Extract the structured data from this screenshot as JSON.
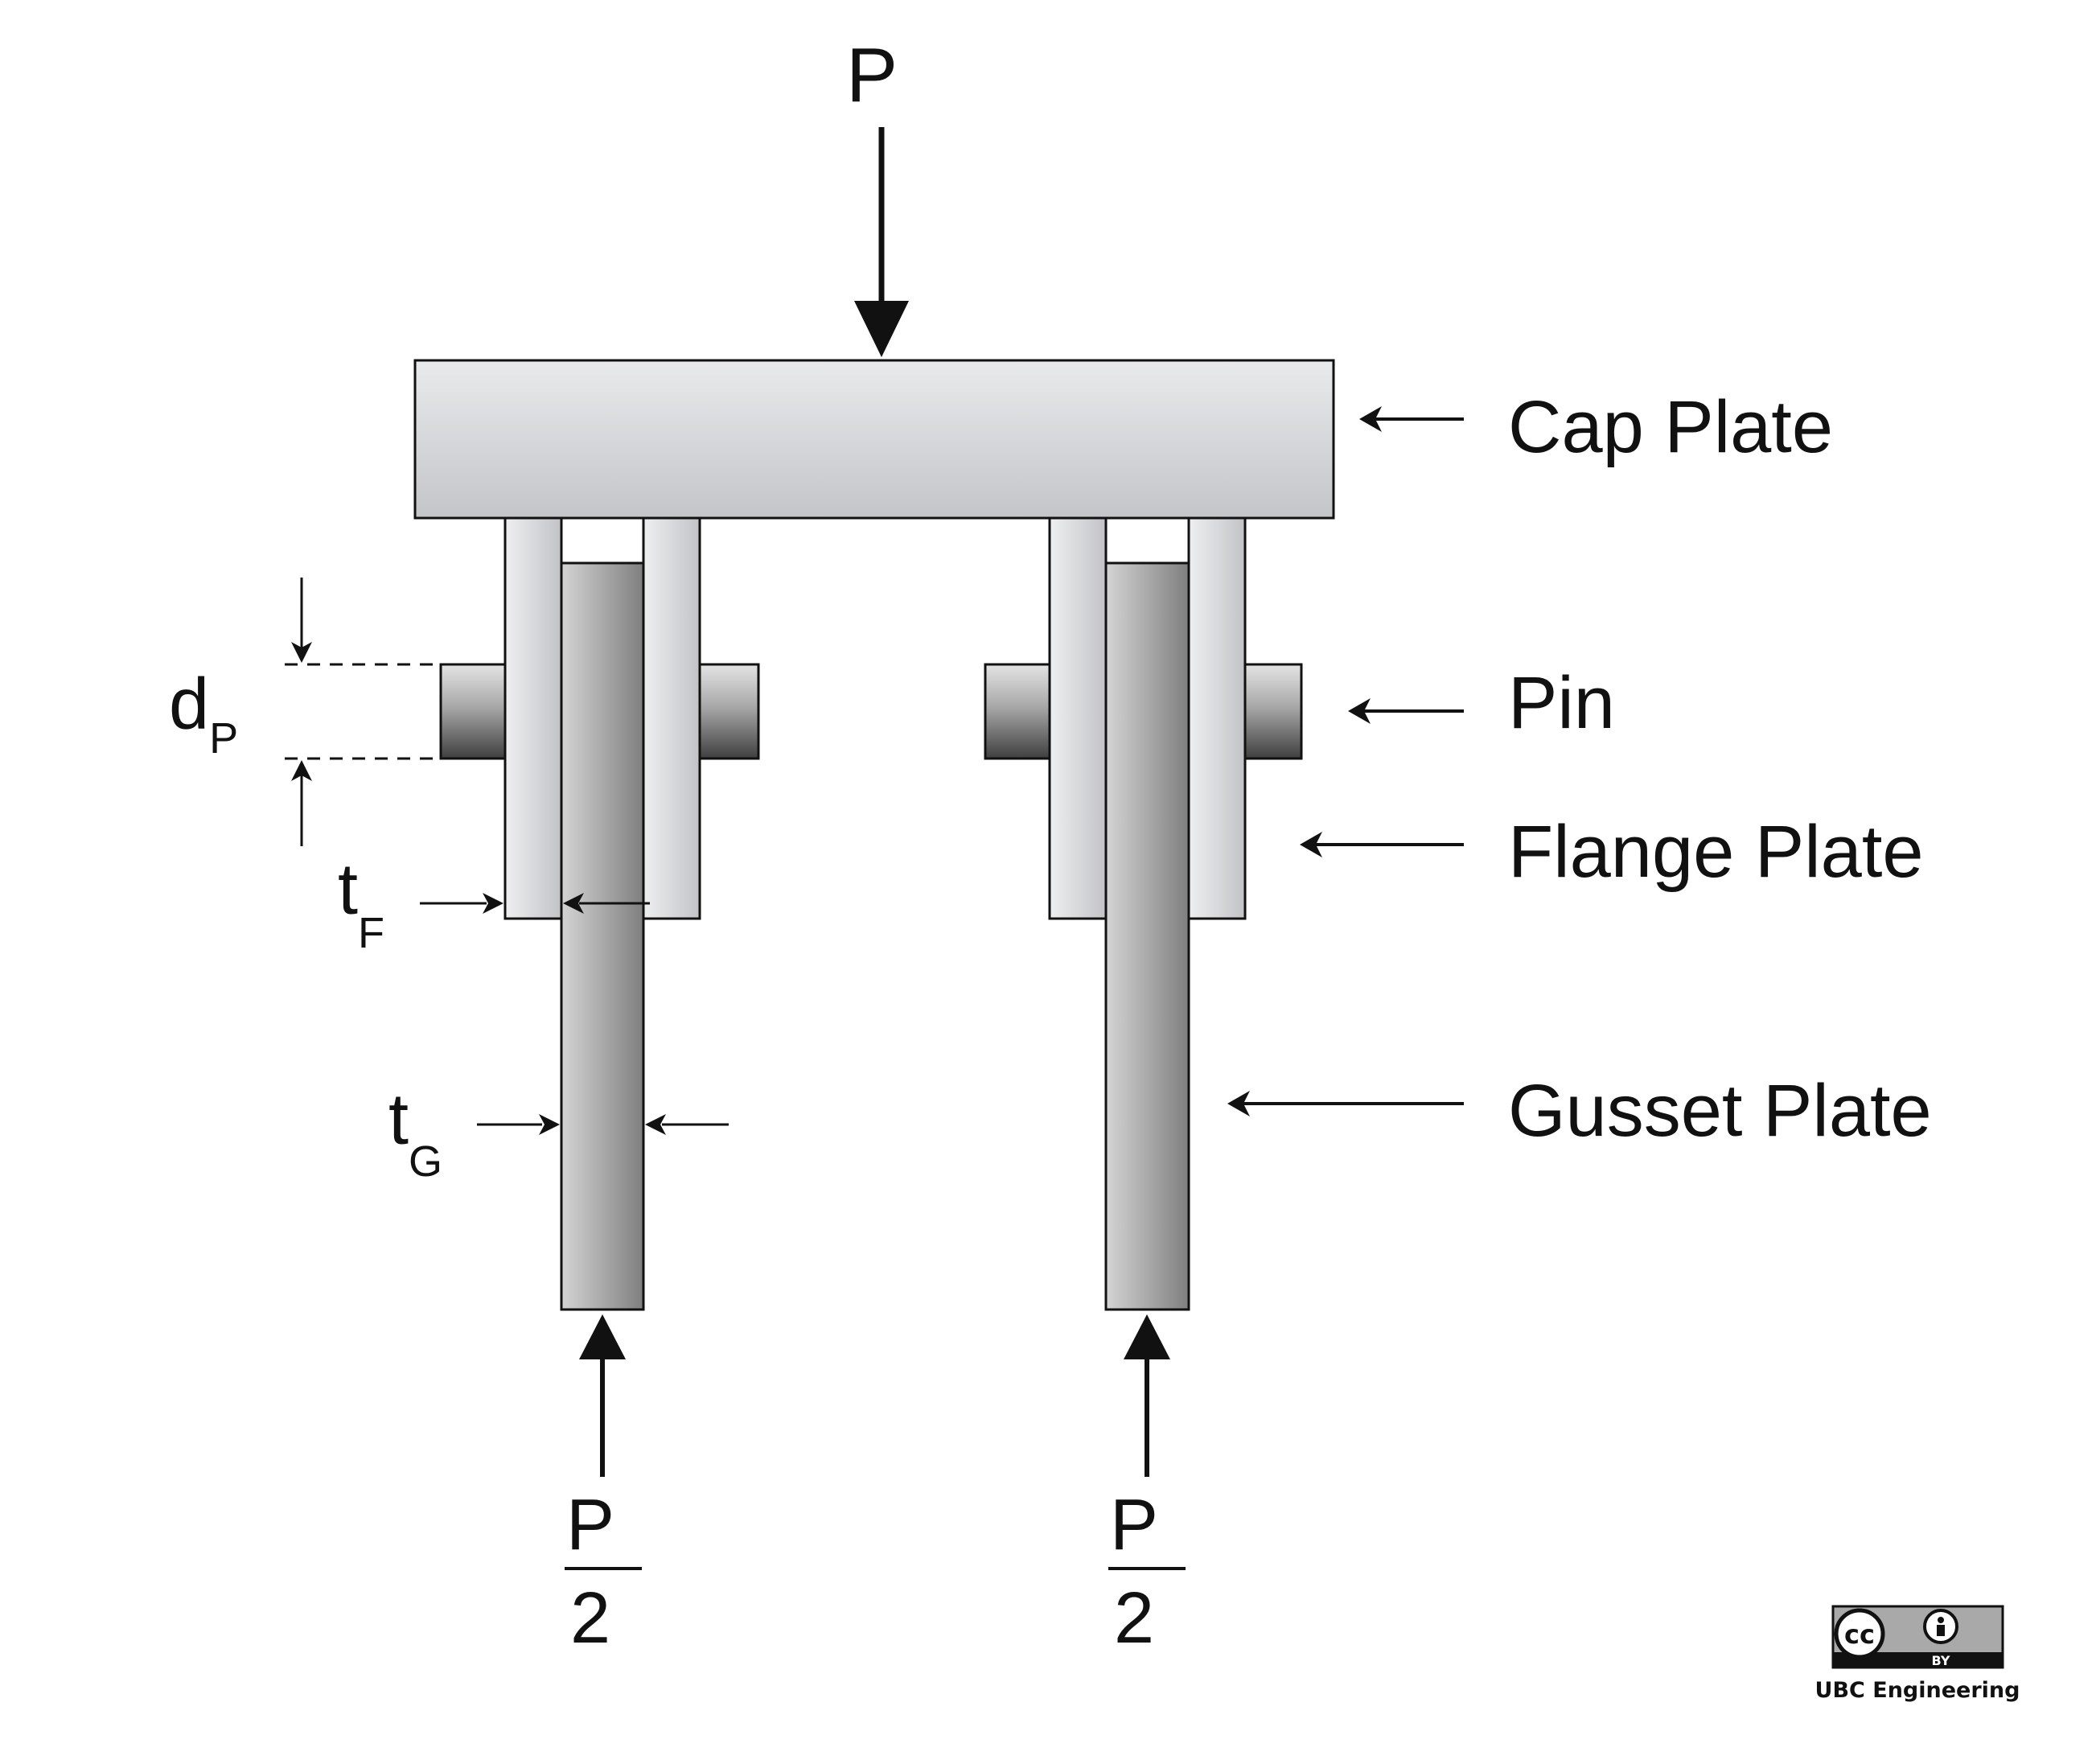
{
  "load": {
    "symbol": "P",
    "reaction_numerator": "P",
    "reaction_denominator": "2"
  },
  "labels": {
    "cap_plate": "Cap Plate",
    "pin": "Pin",
    "flange_plate": "Flange Plate",
    "gusset_plate": "Gusset Plate"
  },
  "dimensions": {
    "pin_diameter": {
      "main": "d",
      "sub": "P"
    },
    "flange_thickness": {
      "main": "t",
      "sub": "F"
    },
    "gusset_thickness": {
      "main": "t",
      "sub": "G"
    }
  },
  "license": {
    "badge_left": "cc",
    "badge_right": "BY",
    "credit": "UBC Engineering"
  },
  "colors": {
    "stroke": "#111111",
    "flange_light": "#e6e7e9",
    "gusset_dark": "#8a8a8a"
  }
}
